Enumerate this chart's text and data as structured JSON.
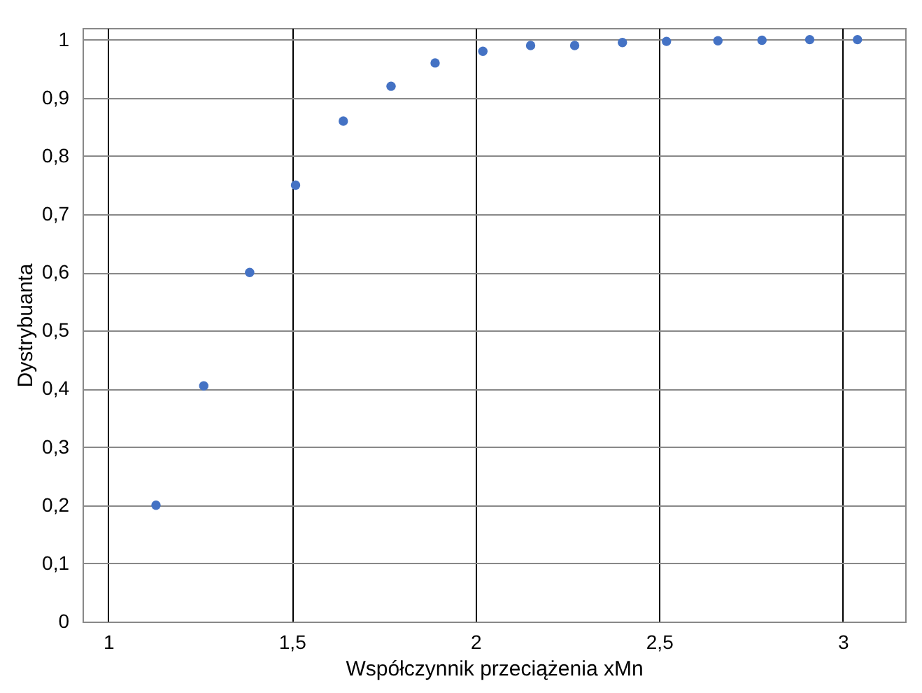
{
  "chart_data": {
    "type": "scatter",
    "xlabel": "Współczynnik przeciążenia xMn",
    "ylabel": "Dystrybuanta",
    "x": [
      1.13,
      1.26,
      1.385,
      1.51,
      1.64,
      1.77,
      1.89,
      2.02,
      2.15,
      2.27,
      2.4,
      2.52,
      2.66,
      2.78,
      2.91,
      3.04
    ],
    "series": [
      {
        "color": "#4472c4",
        "values": [
          0.2,
          0.405,
          0.6,
          0.75,
          0.86,
          0.92,
          0.96,
          0.98,
          0.99,
          0.99,
          0.995,
          0.997,
          0.998,
          0.999,
          1,
          1
        ]
      }
    ],
    "xlim": [
      0.93,
      3.17
    ],
    "xticks": [
      1,
      {
        "value": 1.5,
        "label": "1,5"
      },
      2,
      {
        "value": 2.5,
        "label": "2,5"
      },
      3
    ],
    "ylim": [
      0,
      1.02
    ],
    "yticks": [
      0,
      {
        "value": 0.1,
        "label": "0,1"
      },
      {
        "value": 0.2,
        "label": "0,2"
      },
      {
        "value": 0.3,
        "label": "0,3"
      },
      {
        "value": 0.4,
        "label": "0,4"
      },
      {
        "value": 0.5,
        "label": "0,5"
      },
      {
        "value": 0.6,
        "label": "0,6"
      },
      {
        "value": 0.7,
        "label": "0,7"
      },
      {
        "value": 0.8,
        "label": "0,8"
      },
      {
        "value": 0.9,
        "label": "0,9"
      },
      1
    ],
    "grid": true,
    "marker": "circle"
  }
}
